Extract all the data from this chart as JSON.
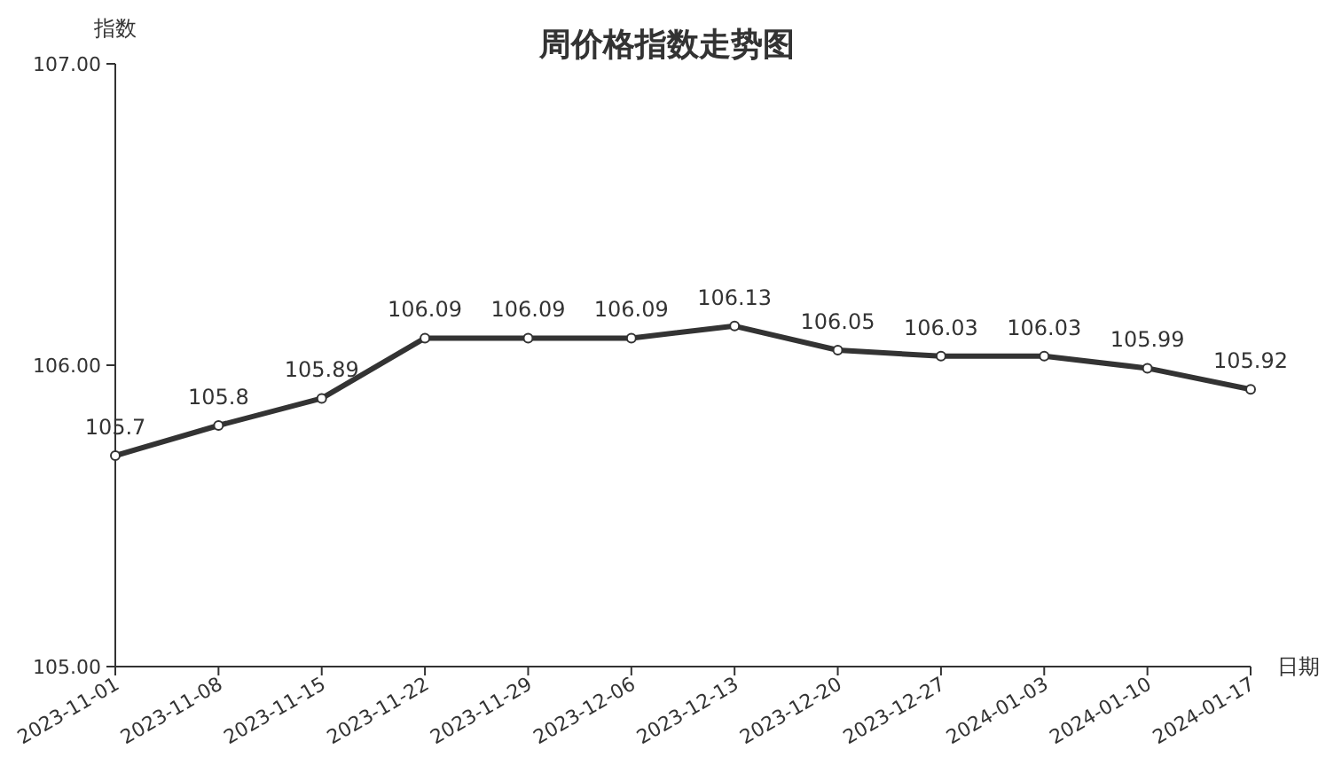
{
  "chart_data": {
    "type": "line",
    "title": "周价格指数走势图",
    "xlabel": "日期",
    "ylabel": "指数",
    "categories": [
      "2023-11-01",
      "2023-11-08",
      "2023-11-15",
      "2023-11-22",
      "2023-11-29",
      "2023-12-06",
      "2023-12-13",
      "2023-12-20",
      "2023-12-27",
      "2024-01-03",
      "2024-01-10",
      "2024-01-17"
    ],
    "values": [
      105.7,
      105.8,
      105.89,
      106.09,
      106.09,
      106.09,
      106.13,
      106.05,
      106.03,
      106.03,
      105.99,
      105.92
    ],
    "color": "#333333",
    "ylim": [
      105,
      107
    ],
    "yticks": [
      {
        "value": 105,
        "label": "105.00"
      },
      {
        "value": 106,
        "label": "106.00"
      },
      {
        "value": 107,
        "label": "107.00"
      }
    ],
    "data_labels": true,
    "marker": "circle",
    "line_style": "solid"
  }
}
